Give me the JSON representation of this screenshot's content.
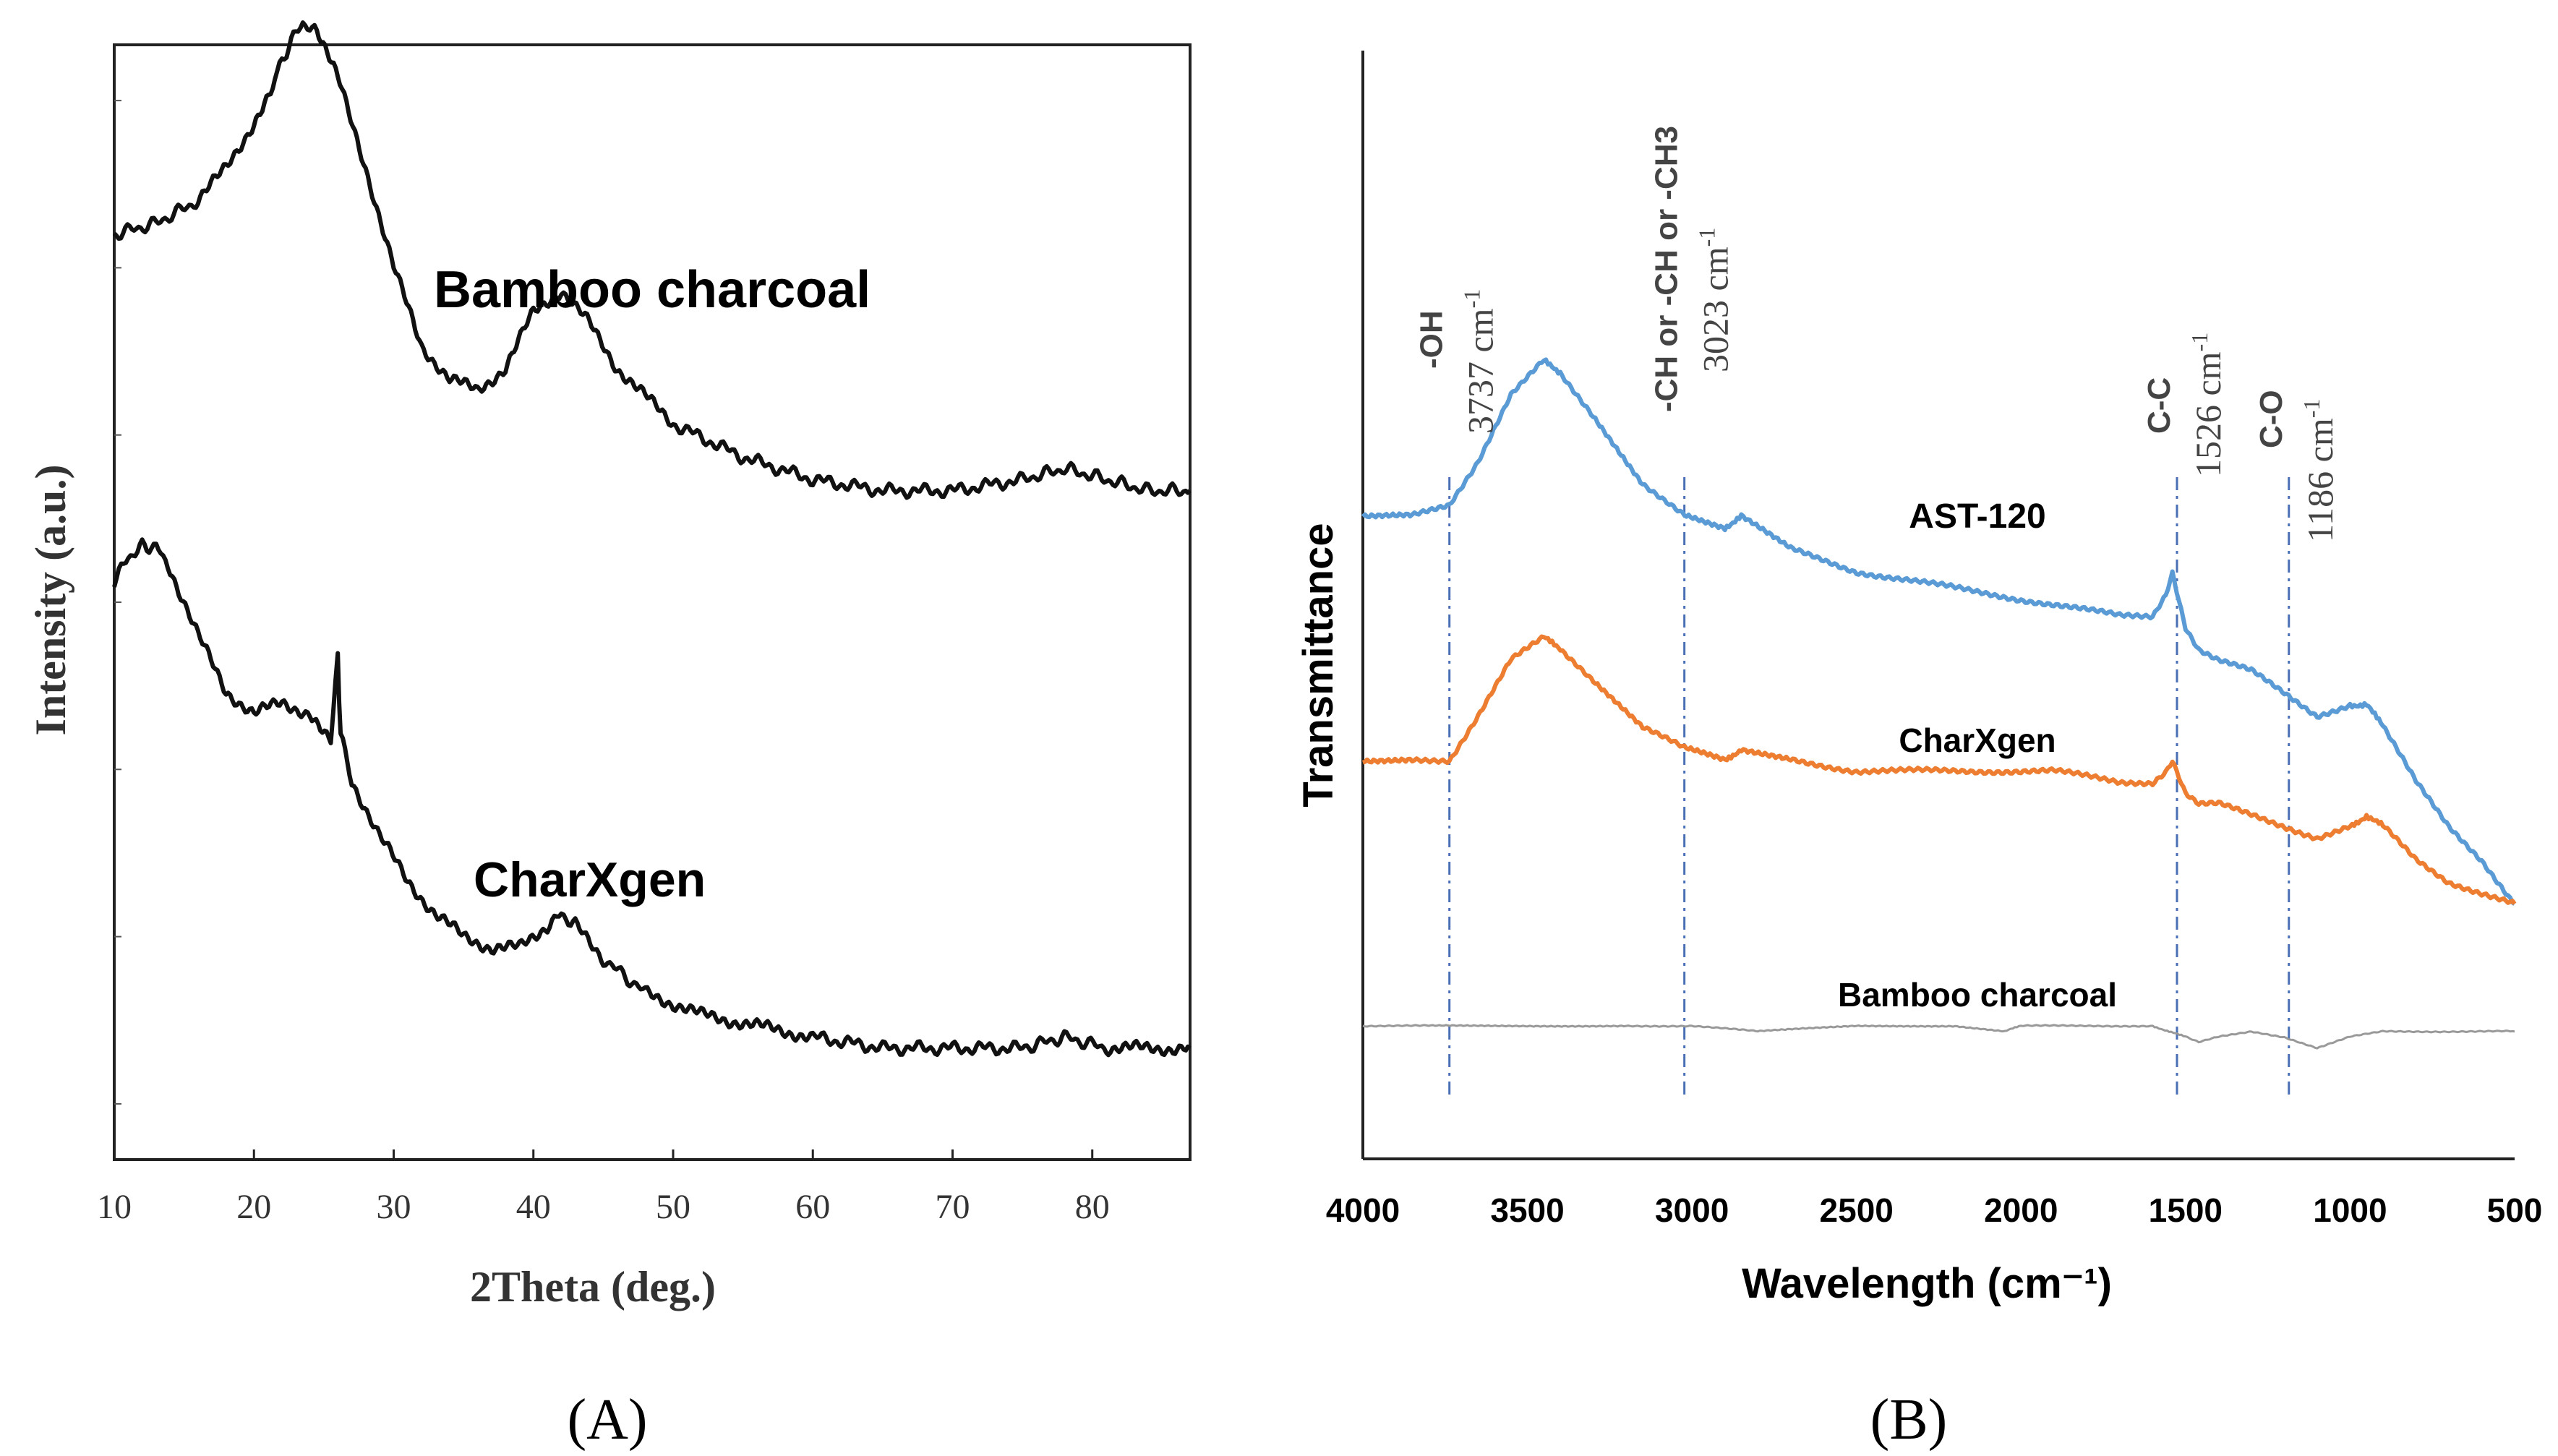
{
  "panels": [
    {
      "label": "(A)"
    },
    {
      "label": "(B)"
    }
  ],
  "chart_data": [
    {
      "type": "line",
      "xlabel": "2Theta (deg.)",
      "ylabel": "Intensity (a.u.)",
      "xlim": [
        10,
        87
      ],
      "xticks": [
        "10",
        "20",
        "30",
        "40",
        "50",
        "60",
        "70",
        "80"
      ],
      "series": [
        {
          "name": "Bamboo charcoal",
          "color": "#111111",
          "x": [
            10,
            13,
            16,
            18,
            20,
            21.5,
            22.5,
            23.5,
            24.5,
            26,
            28,
            30,
            32,
            34,
            36,
            38,
            40,
            42,
            44,
            46,
            50,
            55,
            60,
            65,
            70,
            75,
            78,
            81,
            84,
            87
          ],
          "y": [
            0.83,
            0.84,
            0.86,
            0.89,
            0.93,
            0.97,
            1.0,
            1.02,
            1.01,
            0.97,
            0.89,
            0.8,
            0.73,
            0.7,
            0.69,
            0.71,
            0.76,
            0.78,
            0.75,
            0.71,
            0.66,
            0.63,
            0.61,
            0.6,
            0.6,
            0.61,
            0.62,
            0.61,
            0.6,
            0.6
          ]
        },
        {
          "name": "CharXgen",
          "color": "#111111",
          "x": [
            10,
            11,
            12,
            13,
            14,
            16,
            18,
            20,
            22,
            24,
            25.5,
            26,
            26.2,
            27,
            29,
            31,
            33,
            35,
            37,
            39,
            41,
            42,
            43,
            45,
            48,
            52,
            56,
            60,
            65,
            70,
            75,
            78,
            81,
            87
          ],
          "y": [
            0.52,
            0.54,
            0.55,
            0.55,
            0.53,
            0.47,
            0.42,
            0.4,
            0.41,
            0.4,
            0.38,
            0.45,
            0.38,
            0.34,
            0.29,
            0.25,
            0.22,
            0.2,
            0.19,
            0.19,
            0.21,
            0.22,
            0.21,
            0.18,
            0.15,
            0.13,
            0.12,
            0.11,
            0.1,
            0.1,
            0.1,
            0.11,
            0.1,
            0.1
          ]
        }
      ]
    },
    {
      "type": "line",
      "xlabel": "Wavelength (cm⁻¹)",
      "ylabel": "Transmittance",
      "xlim": [
        4000,
        500
      ],
      "xticks": [
        "4000",
        "3500",
        "3000",
        "2500",
        "2000",
        "1500",
        "1000",
        "500"
      ],
      "series": [
        {
          "name": "AST-120",
          "color": "#5b9bd5",
          "x": [
            4000,
            3850,
            3737,
            3650,
            3550,
            3450,
            3400,
            3300,
            3150,
            3023,
            2900,
            2850,
            2700,
            2500,
            2300,
            2100,
            1900,
            1700,
            1600,
            1560,
            1540,
            1500,
            1460,
            1400,
            1300,
            1200,
            1100,
            1000,
            950,
            900,
            800,
            700,
            600,
            500
          ],
          "y": [
            0.58,
            0.58,
            0.59,
            0.63,
            0.69,
            0.72,
            0.71,
            0.67,
            0.61,
            0.58,
            0.57,
            0.58,
            0.55,
            0.53,
            0.52,
            0.51,
            0.5,
            0.49,
            0.49,
            0.51,
            0.53,
            0.48,
            0.46,
            0.45,
            0.44,
            0.42,
            0.4,
            0.41,
            0.41,
            0.39,
            0.34,
            0.3,
            0.27,
            0.23
          ]
        },
        {
          "name": "CharXgen",
          "color": "#ed7d31",
          "x": [
            4000,
            3850,
            3737,
            3650,
            3550,
            3450,
            3400,
            3300,
            3150,
            3023,
            2900,
            2850,
            2700,
            2500,
            2300,
            2100,
            1900,
            1700,
            1600,
            1560,
            1540,
            1500,
            1460,
            1400,
            1300,
            1200,
            1100,
            1000,
            950,
            900,
            800,
            700,
            600,
            500
          ],
          "y": [
            0.36,
            0.36,
            0.36,
            0.4,
            0.45,
            0.47,
            0.46,
            0.43,
            0.39,
            0.37,
            0.36,
            0.37,
            0.36,
            0.35,
            0.35,
            0.35,
            0.35,
            0.34,
            0.34,
            0.35,
            0.36,
            0.33,
            0.32,
            0.32,
            0.31,
            0.3,
            0.29,
            0.3,
            0.31,
            0.3,
            0.27,
            0.25,
            0.24,
            0.23
          ]
        },
        {
          "name": "Bamboo charcoal",
          "color": "#999999",
          "x": [
            4000,
            3800,
            3500,
            3200,
            3000,
            2800,
            2500,
            2200,
            2050,
            2000,
            1800,
            1600,
            1550,
            1500,
            1460,
            1400,
            1300,
            1200,
            1100,
            1000,
            900,
            800,
            700,
            600,
            500
          ],
          "y": [
            0.12,
            0.12,
            0.12,
            0.12,
            0.12,
            0.115,
            0.12,
            0.12,
            0.115,
            0.12,
            0.12,
            0.12,
            0.115,
            0.11,
            0.105,
            0.11,
            0.115,
            0.11,
            0.1,
            0.11,
            0.115,
            0.115,
            0.115,
            0.115,
            0.115
          ]
        }
      ],
      "annotations": [
        {
          "group": "-OH",
          "wavenumber": "3737 cm",
          "at": 3737
        },
        {
          "group": "-CH or -CH or -CH3",
          "wavenumber": "3023 cm",
          "at": 3023
        },
        {
          "group": "C-C",
          "wavenumber": "1526 cm",
          "at": 1526
        },
        {
          "group": "C-O",
          "wavenumber": "1186 cm",
          "at": 1186
        }
      ],
      "annotation_superscript": "-1"
    }
  ]
}
